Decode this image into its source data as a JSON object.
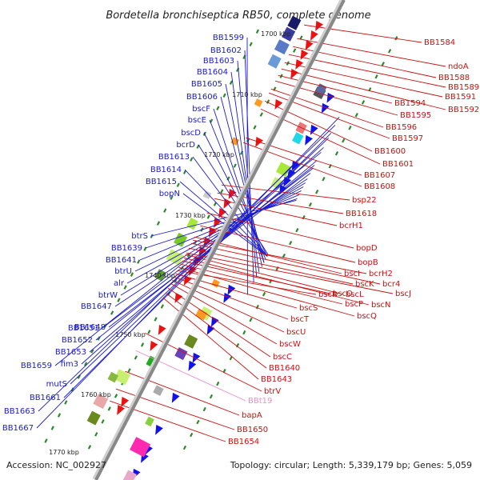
{
  "title": "Bordetella bronchiseptica RB50, complete genome",
  "accession": "Accession: NC_002927",
  "topology": "Topology: circular; Length: 5,339,179 bp; Genes: 5,059",
  "kbp_marks": [
    "1700 kbp",
    "1710 kbp",
    "1720 kbp",
    "1730 kbp",
    "1740 kbp",
    "1750 kbp",
    "1760 kbp",
    "1770 kbp"
  ],
  "colors": {
    "left_label": "#1a1acc",
    "right_label": "#cc1111",
    "rna_label": "#e890c8",
    "backbone": "#888888",
    "tick": "#2a8a2a"
  },
  "left_labels": [
    "BB1599",
    "BB1602",
    "BB1603",
    "BB1604",
    "BB1605",
    "BB1606",
    "bscF",
    "bscE",
    "bscD",
    "bcrD",
    "BB1613",
    "BB1614",
    "BB1615",
    "bopN",
    "btrS",
    "BB1639",
    "BB1641",
    "btrU",
    "alr",
    "btrW",
    "BB1647",
    "BB1648",
    "BB1651",
    "BB1652",
    "BB1653",
    "BB1659",
    "fim3",
    "mutS",
    "BB1661",
    "BB1663",
    "BB1667"
  ],
  "right_labels": [
    "BB1584",
    "ndoA",
    "BB1588",
    "BB1589",
    "BB1591",
    "BB1592",
    "BB1594",
    "BB1595",
    "BB1596",
    "BB1597",
    "BB1600",
    "BB1601",
    "BB1607",
    "BB1608",
    "bsp22",
    "BB1618",
    "bcrH1",
    "bopD",
    "bopB",
    "bscI",
    "bcrH2",
    "bcr4",
    "bscK",
    "bscJ",
    "bscL",
    "bscN",
    "bscO",
    "bscP",
    "bscQ",
    "bscR",
    "bscS",
    "bscT",
    "bscU",
    "bscW",
    "bscC",
    "BB1640",
    "BB1643",
    "btrV",
    "BBt19",
    "bapA",
    "BB1650",
    "BB1654"
  ]
}
